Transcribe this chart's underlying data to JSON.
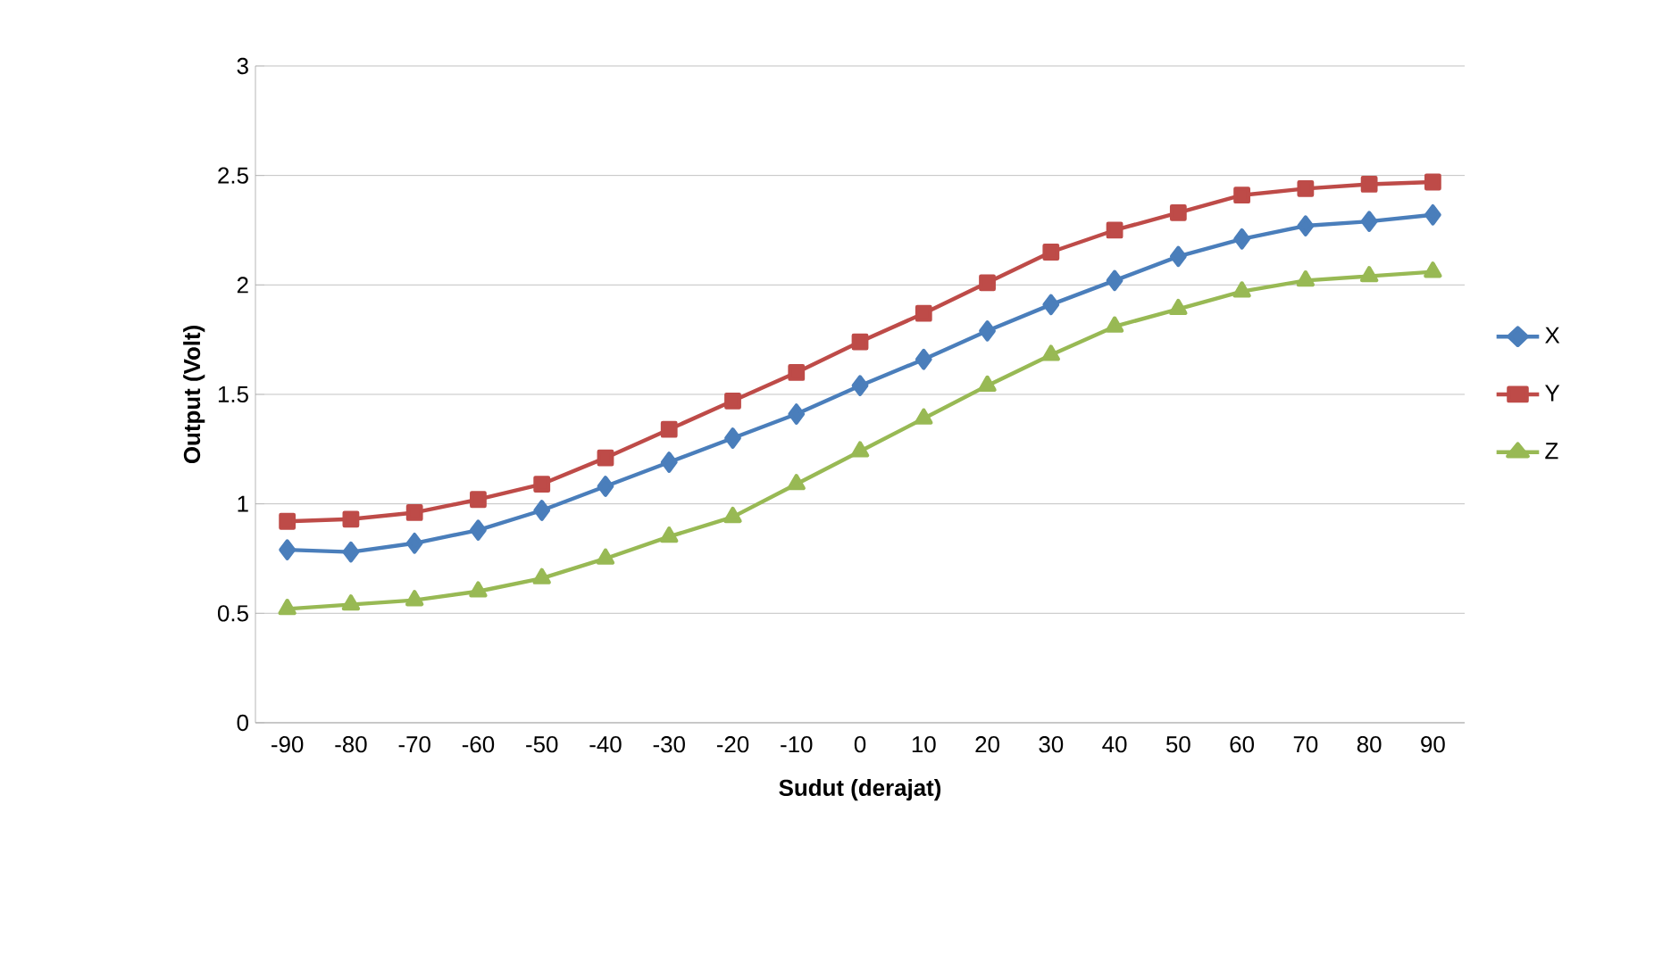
{
  "chart_data": {
    "type": "line",
    "xlabel": "Sudut (derajat)",
    "ylabel": "Output (Volt)",
    "categories": [
      "-90",
      "-80",
      "-70",
      "-60",
      "-50",
      "-40",
      "-30",
      "-20",
      "-10",
      "0",
      "10",
      "20",
      "30",
      "40",
      "50",
      "60",
      "70",
      "80",
      "90"
    ],
    "series": [
      {
        "name": "X",
        "color": "#4a7ebb",
        "marker": "diamond",
        "values": [
          0.79,
          0.78,
          0.82,
          0.88,
          0.97,
          1.08,
          1.19,
          1.3,
          1.41,
          1.54,
          1.66,
          1.79,
          1.91,
          2.02,
          2.13,
          2.21,
          2.27,
          2.29,
          2.32
        ]
      },
      {
        "name": "Y",
        "color": "#be4b48",
        "marker": "square",
        "values": [
          0.92,
          0.93,
          0.96,
          1.02,
          1.09,
          1.21,
          1.34,
          1.47,
          1.6,
          1.74,
          1.87,
          2.01,
          2.15,
          2.25,
          2.33,
          2.41,
          2.44,
          2.46,
          2.47
        ]
      },
      {
        "name": "Z",
        "color": "#98b954",
        "marker": "triangle",
        "values": [
          0.52,
          0.54,
          0.56,
          0.6,
          0.66,
          0.75,
          0.85,
          0.94,
          1.09,
          1.24,
          1.39,
          1.54,
          1.68,
          1.81,
          1.89,
          1.97,
          2.02,
          2.04,
          2.06
        ]
      }
    ],
    "ylim": [
      0,
      3
    ],
    "yticks": [
      0,
      0.5,
      1,
      1.5,
      2,
      2.5,
      3
    ],
    "grid": "y",
    "legend": "right",
    "line_style": "solid"
  }
}
